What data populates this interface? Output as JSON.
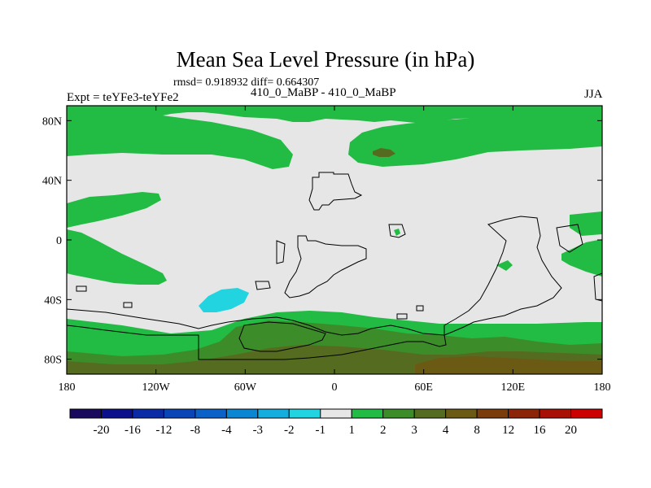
{
  "title": "Mean Sea Level Pressure (in hPa)",
  "stats": "rmsd= 0.918932  diff= 0.664307",
  "experiment": "Expt = teYFe3-teYFe2",
  "runs": "410_0_MaBP - 410_0_MaBP",
  "season": "JJA",
  "map": {
    "longitude_ticks": [
      "180",
      "120W",
      "60W",
      "0",
      "60E",
      "120E",
      "180"
    ],
    "latitude_ticks": [
      "80N",
      "40N",
      "0",
      "40S",
      "80S"
    ],
    "colors": {
      "background_band": "#e6e6e6",
      "positive_1_2": "#22bb44",
      "positive_2_3": "#3c8c2a",
      "positive_3_4": "#556b1f",
      "positive_4_8": "#6b5a14",
      "negative_minus2_minus1": "#22d4e0",
      "coastline": "#000000"
    }
  },
  "colorbar": {
    "labels": [
      "-20",
      "-16",
      "-12",
      "-8",
      "-4",
      "-3",
      "-2",
      "-1",
      "1",
      "2",
      "3",
      "4",
      "8",
      "12",
      "16",
      "20"
    ],
    "colors": [
      "#1a0a5e",
      "#0c0f8c",
      "#0b2aa6",
      "#0a45b8",
      "#0a62c8",
      "#0a86d2",
      "#13aede",
      "#22d4e0",
      "#e6e6e6",
      "#22bb44",
      "#3c8c2a",
      "#556b1f",
      "#6b5a14",
      "#7a3c0a",
      "#8c2408",
      "#a81006",
      "#cc0000"
    ]
  }
}
